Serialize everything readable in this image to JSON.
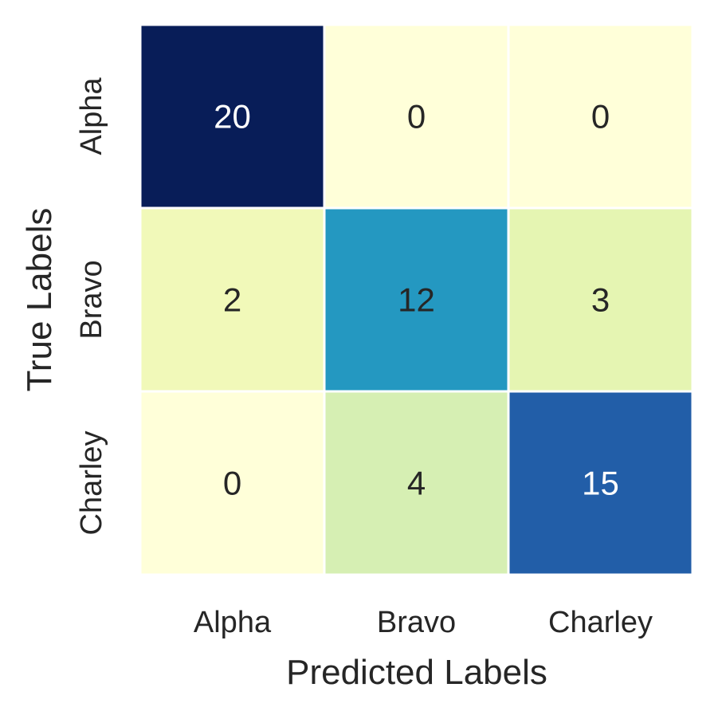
{
  "chart_data": {
    "type": "heatmap",
    "x_categories": [
      "Alpha",
      "Bravo",
      "Charley"
    ],
    "y_categories": [
      "Alpha",
      "Bravo",
      "Charley"
    ],
    "matrix": [
      [
        20,
        0,
        0
      ],
      [
        2,
        12,
        3
      ],
      [
        0,
        4,
        15
      ]
    ],
    "xlabel": "Predicted Labels",
    "ylabel": "True Labels",
    "value_range": [
      0,
      20
    ],
    "colormap": "YlGnBu",
    "colorbar": false,
    "annotations": true,
    "grid_color": "#ffffff"
  }
}
